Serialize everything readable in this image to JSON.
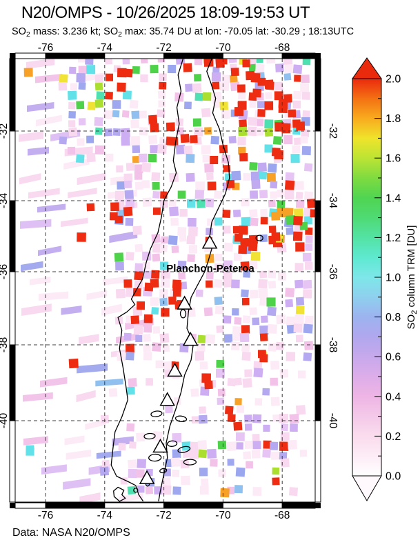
{
  "header": {
    "title": "N20/OMPS - 10/26/2025 18:09-19:53 UT",
    "subtitle": {
      "p1": "SO",
      "sub1": "2",
      "p2": " mass: 3.236 kt; SO",
      "sub2": "2",
      "p3": " max: 35.74 DU at lon: -70.05 lat: -30.29 ; 18:13UTC"
    }
  },
  "measurements": {
    "so2_mass_kt": "3.236",
    "so2_max_du": "35.74",
    "max_lon": "-70.05",
    "max_lat": "-30.29",
    "max_time": "18:13UTC"
  },
  "footer": {
    "attribution": "Data: NASA N20/OMPS",
    "color": "#e63c28"
  },
  "map": {
    "lon_ticks": [
      -76,
      -74,
      -72,
      -70,
      -68
    ],
    "lat_ticks": [
      -32,
      -34,
      -36,
      -38,
      -40
    ],
    "lon_range": [
      -77.03,
      -66.86
    ],
    "lat_range": [
      -30.0,
      -42.2
    ],
    "grid_step_deg": 2,
    "volcano_label": {
      "text": "Planchon-Peteroa",
      "lon": -70.43,
      "lat": -35.9
    },
    "volcano_markers": [
      [
        -70.45,
        -35.18
      ],
      [
        -71.3,
        -36.87
      ],
      [
        -71.1,
        -37.86
      ],
      [
        -71.63,
        -38.68
      ],
      [
        -71.88,
        -39.45
      ],
      [
        -72.12,
        -40.7
      ],
      [
        -72.57,
        -41.55
      ]
    ],
    "coastline": [
      [
        -71.35,
        -30.0
      ],
      [
        -71.52,
        -30.45
      ],
      [
        -71.42,
        -30.9
      ],
      [
        -71.56,
        -31.35
      ],
      [
        -71.48,
        -31.8
      ],
      [
        -71.6,
        -32.3
      ],
      [
        -71.68,
        -32.85
      ],
      [
        -71.58,
        -33.2
      ],
      [
        -71.75,
        -33.6
      ],
      [
        -72.0,
        -34.0
      ],
      [
        -72.08,
        -34.45
      ],
      [
        -72.2,
        -34.9
      ],
      [
        -72.45,
        -35.35
      ],
      [
        -72.6,
        -35.75
      ],
      [
        -72.72,
        -36.2
      ],
      [
        -73.0,
        -36.6
      ],
      [
        -73.1,
        -36.75
      ],
      [
        -72.98,
        -36.9
      ],
      [
        -73.25,
        -37.1
      ],
      [
        -73.55,
        -37.25
      ],
      [
        -73.42,
        -37.6
      ],
      [
        -73.5,
        -38.1
      ],
      [
        -73.38,
        -38.6
      ],
      [
        -73.28,
        -39.1
      ],
      [
        -73.22,
        -39.45
      ],
      [
        -73.42,
        -39.9
      ],
      [
        -73.65,
        -40.3
      ],
      [
        -73.72,
        -40.75
      ],
      [
        -73.78,
        -41.2
      ],
      [
        -73.6,
        -41.5
      ],
      [
        -73.2,
        -41.65
      ],
      [
        -72.95,
        -41.75
      ],
      [
        -72.85,
        -42.0
      ],
      [
        -72.7,
        -42.18
      ]
    ],
    "border": [
      [
        -70.38,
        -30.0
      ],
      [
        -70.55,
        -30.35
      ],
      [
        -70.4,
        -30.7
      ],
      [
        -70.25,
        -31.1
      ],
      [
        -70.35,
        -31.5
      ],
      [
        -70.12,
        -31.95
      ],
      [
        -70.0,
        -32.4
      ],
      [
        -69.82,
        -32.9
      ],
      [
        -69.78,
        -33.35
      ],
      [
        -69.92,
        -33.8
      ],
      [
        -70.15,
        -34.2
      ],
      [
        -70.38,
        -34.6
      ],
      [
        -70.45,
        -35.0
      ],
      [
        -70.38,
        -35.35
      ],
      [
        -70.5,
        -35.7
      ],
      [
        -70.62,
        -36.0
      ],
      [
        -70.85,
        -36.35
      ],
      [
        -71.08,
        -36.7
      ],
      [
        -71.17,
        -37.1
      ],
      [
        -71.22,
        -37.55
      ],
      [
        -71.0,
        -37.95
      ],
      [
        -71.08,
        -38.4
      ],
      [
        -71.3,
        -38.8
      ],
      [
        -71.42,
        -39.25
      ],
      [
        -71.6,
        -39.7
      ],
      [
        -71.8,
        -40.15
      ],
      [
        -71.92,
        -40.6
      ],
      [
        -71.88,
        -41.0
      ],
      [
        -72.0,
        -41.45
      ],
      [
        -72.12,
        -41.9
      ],
      [
        -72.18,
        -42.18
      ]
    ],
    "island": [
      [
        -73.55,
        -41.8
      ],
      [
        -73.35,
        -41.88
      ],
      [
        -73.42,
        -42.0
      ],
      [
        -73.3,
        -42.1
      ],
      [
        -73.5,
        -42.18
      ],
      [
        -73.68,
        -42.05
      ],
      [
        -73.7,
        -41.9
      ]
    ],
    "lakes": [
      [
        -68.77,
        -35.05,
        5,
        4
      ],
      [
        -71.35,
        -37.15,
        4,
        6
      ],
      [
        -72.25,
        -39.82,
        8,
        4
      ],
      [
        -71.42,
        -39.95,
        8,
        4
      ],
      [
        -72.48,
        -40.42,
        8,
        4
      ],
      [
        -71.72,
        -40.62,
        7,
        4
      ],
      [
        -71.32,
        -40.78,
        9,
        4
      ],
      [
        -71.12,
        -41.12,
        9,
        4
      ],
      [
        -72.02,
        -41.35,
        5,
        3
      ],
      [
        -72.3,
        -41.0,
        9,
        5
      ],
      [
        -72.95,
        -41.88,
        3,
        3
      ],
      [
        -72.55,
        -41.72,
        2.5,
        2.5
      ]
    ],
    "pixel_field": {
      "seed": 20251026,
      "swath_palette": [
        [
          "#fdeaf7",
          0.34
        ],
        [
          "#f8d9f0",
          0.26
        ],
        [
          "#f2c4ea",
          0.16
        ],
        [
          "#dfc0f4",
          0.1
        ],
        [
          "#c3aef0",
          0.08
        ],
        [
          "#a3aaee",
          0.04
        ],
        [
          "#8fc0f0",
          0.02
        ]
      ],
      "light_palette": [
        [
          "#fdeaf7",
          0.3
        ],
        [
          "#f9d9f0",
          0.24
        ],
        [
          "#f3c2e9",
          0.13
        ],
        [
          "#e6c4f4",
          0.1
        ],
        [
          "#cdaef2",
          0.09
        ],
        [
          "#b4a9f0",
          0.07
        ],
        [
          "#9fa8ee",
          0.04
        ],
        [
          "#8fc0f0",
          0.03
        ]
      ],
      "accent_palette": [
        [
          "#ee2c12",
          0.3
        ],
        [
          "#62e2e8",
          0.15
        ],
        [
          "#4ed24a",
          0.13
        ],
        [
          "#9aa6ee",
          0.11
        ],
        [
          "#c2aaf0",
          0.09
        ],
        [
          "#4fe0b2",
          0.07
        ],
        [
          "#aade2f",
          0.06
        ],
        [
          "#f7a126",
          0.05
        ],
        [
          "#f1e335",
          0.04
        ]
      ],
      "hotspots": [
        {
          "lon": -68.33,
          "lat": -30.9,
          "n": 6,
          "s": 30,
          "c": [
            "#ee2c12"
          ]
        },
        {
          "lon": -69.38,
          "lat": -30.44,
          "n": 4,
          "s": 22,
          "c": [
            "#ee2c12"
          ]
        },
        {
          "lon": -67.47,
          "lat": -31.52,
          "n": 5,
          "s": 26,
          "c": [
            "#ee2c12"
          ]
        },
        {
          "lon": -70.05,
          "lat": -30.29,
          "n": 4,
          "s": 24,
          "c": [
            "#ee2c12"
          ]
        },
        {
          "lon": -73.3,
          "lat": -30.7,
          "n": 3,
          "s": 20,
          "c": [
            "#ee2c12"
          ]
        },
        {
          "lon": -72.18,
          "lat": -31.71,
          "n": 3,
          "s": 26,
          "c": [
            "#ee2c12"
          ]
        },
        {
          "lon": -67.75,
          "lat": -32.38,
          "n": 4,
          "s": 26,
          "c": [
            "#ee2c12"
          ]
        },
        {
          "lon": -69.26,
          "lat": -35.19,
          "n": 6,
          "s": 24,
          "c": [
            "#ee2c12"
          ]
        },
        {
          "lon": -67.75,
          "lat": -34.72,
          "n": 8,
          "s": 26,
          "c": [
            "#ee2c12",
            "#f7a126",
            "#4ed24a",
            "#f1e335",
            "#ee2c12"
          ]
        },
        {
          "lon": -67.1,
          "lat": -34.33,
          "n": 4,
          "s": 16,
          "c": [
            "#ee2c12"
          ]
        },
        {
          "lon": -71.9,
          "lat": -36.64,
          "n": 7,
          "s": 26,
          "c": [
            "#ee2c12"
          ]
        },
        {
          "lon": -72.65,
          "lat": -37.17,
          "n": 3,
          "s": 16,
          "c": [
            "#ee2c12"
          ]
        },
        {
          "lon": -74.2,
          "lat": -34.47,
          "n": 5,
          "s": 30,
          "c": [
            "#ee2c12"
          ]
        },
        {
          "lon": -71.43,
          "lat": -32.34,
          "n": 3,
          "s": 22,
          "c": [
            "#ee2c12"
          ]
        },
        {
          "lon": -69.84,
          "lat": -33.15,
          "n": 3,
          "s": 24,
          "c": [
            "#ee2c12"
          ]
        },
        {
          "lon": -69.1,
          "lat": -31.2,
          "n": 3,
          "s": 20,
          "c": [
            "#ee2c12"
          ]
        },
        {
          "lon": -68.5,
          "lat": -38.37,
          "n": 2,
          "s": 14,
          "c": [
            "#ee2c12"
          ]
        },
        {
          "lon": -75.16,
          "lat": -38.44,
          "n": 1,
          "s": 6,
          "c": [
            "#ee2c12"
          ]
        },
        {
          "lon": -70.66,
          "lat": -39.02,
          "n": 2,
          "s": 12,
          "c": [
            "#ee2c12"
          ]
        },
        {
          "lon": -69.66,
          "lat": -39.91,
          "n": 2,
          "s": 14,
          "c": [
            "#ee2c12"
          ]
        },
        {
          "lon": -76.65,
          "lat": -30.29,
          "n": 1,
          "s": 6,
          "c": [
            "#f7a126"
          ]
        },
        {
          "lon": -70.0,
          "lat": -42.0,
          "n": 1,
          "s": 6,
          "c": [
            "#f7a126"
          ]
        },
        {
          "lon": -76.33,
          "lat": -40.7,
          "n": 2,
          "s": 10,
          "c": [
            "#62e2e8"
          ]
        }
      ]
    }
  },
  "colorbar": {
    "title_parts": {
      "p1": "SO",
      "sub": "2",
      "p2": " column TRM [DU]"
    },
    "range": [
      0.0,
      2.0
    ],
    "major_tick_step": 0.2,
    "minor_tick_step": 0.1,
    "tick_labels": [
      "0.0",
      "0.2",
      "0.4",
      "0.6",
      "0.8",
      "1.0",
      "1.2",
      "1.4",
      "1.6",
      "1.8",
      "2.0"
    ],
    "stops": [
      [
        0.0,
        "#ffffff"
      ],
      [
        0.1,
        "#fdecf6"
      ],
      [
        0.2,
        "#fadcee"
      ],
      [
        0.3,
        "#f4c9e9"
      ],
      [
        0.4,
        "#eeb5e5"
      ],
      [
        0.5,
        "#ddade9"
      ],
      [
        0.6,
        "#c7a9ec"
      ],
      [
        0.7,
        "#b1a7ee"
      ],
      [
        0.8,
        "#9db3f0"
      ],
      [
        0.9,
        "#8ed0ee"
      ],
      [
        1.0,
        "#7ee7e9"
      ],
      [
        1.1,
        "#5ee9d0"
      ],
      [
        1.2,
        "#54e2a4"
      ],
      [
        1.3,
        "#4fda74"
      ],
      [
        1.4,
        "#4fd551"
      ],
      [
        1.5,
        "#7fdb40"
      ],
      [
        1.6,
        "#bce434"
      ],
      [
        1.7,
        "#efe42b"
      ],
      [
        1.8,
        "#f8ab1e"
      ],
      [
        1.9,
        "#f37113"
      ],
      [
        2.0,
        "#ea2a0d"
      ]
    ],
    "top_arrow_color": "#ea2a0d",
    "bottom_arrow_color": "#fff8fc"
  }
}
